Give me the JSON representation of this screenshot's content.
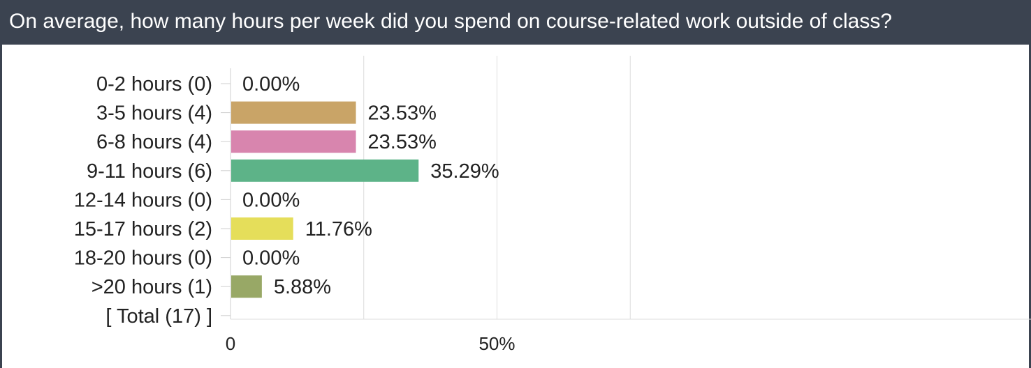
{
  "header": {
    "question": "On average, how many hours per week did you spend on course-related work outside of class?"
  },
  "chart_data": {
    "type": "bar",
    "orientation": "horizontal",
    "categories": [
      "0-2 hours (0)",
      "3-5 hours (4)",
      "6-8 hours (4)",
      "9-11 hours (6)",
      "12-14 hours (0)",
      "15-17 hours (2)",
      "18-20 hours (0)",
      ">20 hours (1)",
      "[ Total (17) ]"
    ],
    "values": [
      0.0,
      23.53,
      23.53,
      35.29,
      0.0,
      11.76,
      0.0,
      5.88,
      null
    ],
    "value_labels": [
      "0.00%",
      "23.53%",
      "23.53%",
      "35.29%",
      "0.00%",
      "11.76%",
      "0.00%",
      "5.88%",
      ""
    ],
    "colors": [
      "#999999",
      "#c9a467",
      "#d885ae",
      "#5db388",
      "#999999",
      "#e5de5a",
      "#999999",
      "#98a866",
      "#999999"
    ],
    "xlim": [
      0,
      75
    ],
    "x_ticks": [
      0,
      50
    ],
    "x_tick_labels": [
      "0",
      "50%"
    ],
    "gridlines": [
      25,
      50,
      75
    ],
    "grid": true,
    "legend": "none"
  }
}
